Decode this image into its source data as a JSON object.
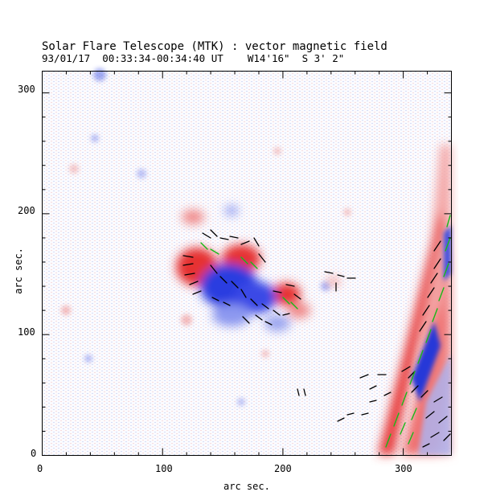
{
  "header": {
    "title": "Solar Flare Telescope (MTK) : vector magnetic field",
    "subtitle": "93/01/17  00:33:34-00:34:40 UT    W14'16\"  S 3' 2\""
  },
  "axes": {
    "xlabel": "arc sec.",
    "ylabel": "arc sec.",
    "x_ticks": [
      "0",
      "100",
      "200",
      "300"
    ],
    "y_ticks": [
      "0",
      "100",
      "200",
      "300"
    ],
    "xlim": [
      0,
      340
    ],
    "ylim": [
      0,
      318
    ]
  },
  "colors": {
    "positive_polarity": "#e84040",
    "negative_polarity": "#3a4ae0",
    "transverse_vectors": "#000000",
    "highlight_vectors": "#18b818"
  }
}
